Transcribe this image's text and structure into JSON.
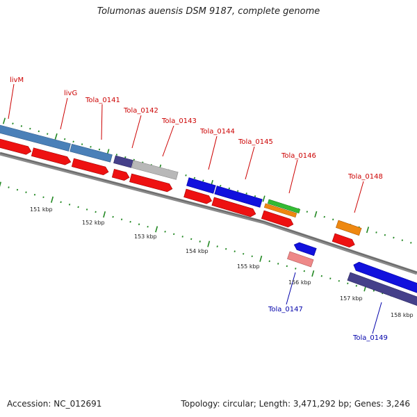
{
  "title": "Tolumonas auensis DSM 9187, complete genome",
  "footer": {
    "accession": "Accession: NC_012691",
    "stats": "Topology: circular; Length: 3,471,292 bp; Genes: 3,246"
  },
  "scale_labels": [
    "151 kbp",
    "152 kbp",
    "153 kbp",
    "154 kbp",
    "155 kbp",
    "156 kbp",
    "157 kbp",
    "158 kbp"
  ],
  "gene_labels": [
    "livM",
    "livG",
    "Tola_0141",
    "Tola_0142",
    "Tola_0143",
    "Tola_0144",
    "Tola_0145",
    "Tola_0146",
    "Tola_0148",
    "Tola_0147",
    "Tola_0149"
  ],
  "colors": {
    "cds": "#ee1111",
    "blue": "#1111dd",
    "steelblue": "#4a80b8",
    "navy": "#45408a",
    "gray": "#b8b8b8",
    "green": "#33bb33",
    "orange": "#ee8811",
    "pink": "#ee8888",
    "backbone": "#808080",
    "tick": "#228822",
    "label_red": "#cc0000",
    "label_blue": "#0000aa"
  }
}
